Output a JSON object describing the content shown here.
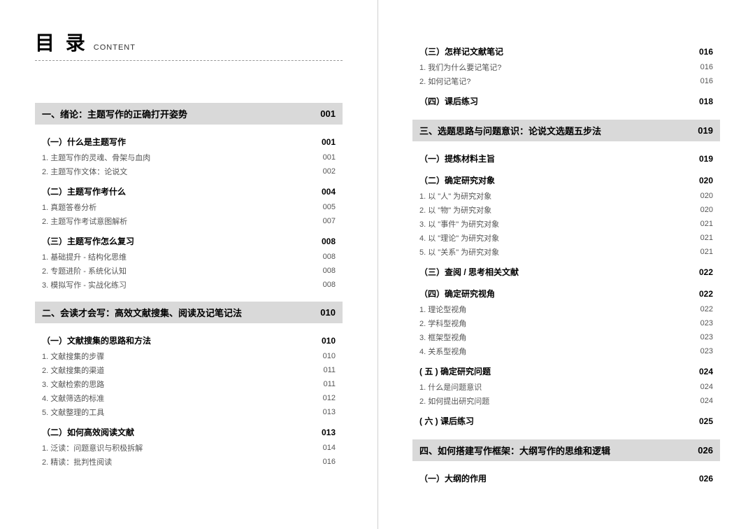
{
  "header": {
    "main": "目 录",
    "sub": "CONTENT"
  },
  "left": {
    "chapters": [
      {
        "title": "一、绪论：主题写作的正确打开姿势",
        "page": "001",
        "sections": [
          {
            "title": "（一）什么是主题写作",
            "page": "001",
            "items": [
              {
                "title": "1. 主题写作的灵魂、骨架与血肉",
                "page": "001"
              },
              {
                "title": "2. 主题写作文体：论说文",
                "page": "002"
              }
            ]
          },
          {
            "title": "（二）主题写作考什么",
            "page": "004",
            "items": [
              {
                "title": "1. 真题答卷分析",
                "page": "005"
              },
              {
                "title": "2. 主题写作考试意图解析",
                "page": "007"
              }
            ]
          },
          {
            "title": "（三）主题写作怎么复习",
            "page": "008",
            "items": [
              {
                "title": "1. 基础提升 - 结构化思维",
                "page": "008"
              },
              {
                "title": "2. 专题进阶 - 系统化认知",
                "page": "008"
              },
              {
                "title": "3. 模拟写作 - 实战化练习",
                "page": "008"
              }
            ]
          }
        ]
      },
      {
        "title": "二、会读才会写：高效文献搜集、阅读及记笔记法",
        "page": "010",
        "sections": [
          {
            "title": "（一）文献搜集的思路和方法",
            "page": "010",
            "items": [
              {
                "title": "1. 文献搜集的步骤",
                "page": "010"
              },
              {
                "title": "2. 文献搜集的渠道",
                "page": "011"
              },
              {
                "title": "3. 文献检索的思路",
                "page": "011"
              },
              {
                "title": "4. 文献筛选的标准",
                "page": "012"
              },
              {
                "title": "5. 文献整理的工具",
                "page": "013"
              }
            ]
          },
          {
            "title": "（二）如何高效阅读文献",
            "page": "013",
            "items": [
              {
                "title": "1. 泛读：问题意识与积极拆解",
                "page": "014"
              },
              {
                "title": "2. 精读：批判性阅读",
                "page": "016"
              }
            ]
          }
        ]
      }
    ]
  },
  "right": {
    "pre_sections": [
      {
        "title": "（三）怎样记文献笔记",
        "page": "016",
        "items": [
          {
            "title": "1. 我们为什么要记笔记?",
            "page": "016"
          },
          {
            "title": "2. 如何记笔记?",
            "page": "016"
          }
        ]
      },
      {
        "title": "（四）课后练习",
        "page": "018",
        "items": []
      }
    ],
    "chapters": [
      {
        "title": "三、选题思路与问题意识：论说文选题五步法",
        "page": "019",
        "sections": [
          {
            "title": "（一）提炼材料主旨",
            "page": "019",
            "items": []
          },
          {
            "title": "（二）确定研究对象",
            "page": "020",
            "items": [
              {
                "title": "1. 以 \"人\" 为研究对象",
                "page": "020"
              },
              {
                "title": "2. 以 \"物\" 为研究对象",
                "page": "020"
              },
              {
                "title": "3. 以 \"事件\" 为研究对象",
                "page": "021"
              },
              {
                "title": "4. 以 \"理论\" 为研究对象",
                "page": "021"
              },
              {
                "title": "5. 以 \"关系\" 为研究对象",
                "page": "021"
              }
            ]
          },
          {
            "title": "（三）查阅 / 思考相关文献",
            "page": "022",
            "items": []
          },
          {
            "title": "（四）确定研究视角",
            "page": "022",
            "items": [
              {
                "title": "1. 理论型视角",
                "page": "022"
              },
              {
                "title": "2. 学科型视角",
                "page": "023"
              },
              {
                "title": "3. 框架型视角",
                "page": "023"
              },
              {
                "title": "4. 关系型视角",
                "page": "023"
              }
            ]
          },
          {
            "title": "( 五 ) 确定研究问题",
            "page": "024",
            "items": [
              {
                "title": "1. 什么是问题意识",
                "page": "024"
              },
              {
                "title": "2. 如何提出研究问题",
                "page": "024"
              }
            ]
          },
          {
            "title": "( 六 ) 课后练习",
            "page": "025",
            "items": []
          }
        ]
      },
      {
        "title": "四、如何搭建写作框架：大纲写作的思维和逻辑",
        "page": "026",
        "sections": [
          {
            "title": "（一）大纲的作用",
            "page": "026",
            "items": []
          }
        ]
      }
    ]
  }
}
